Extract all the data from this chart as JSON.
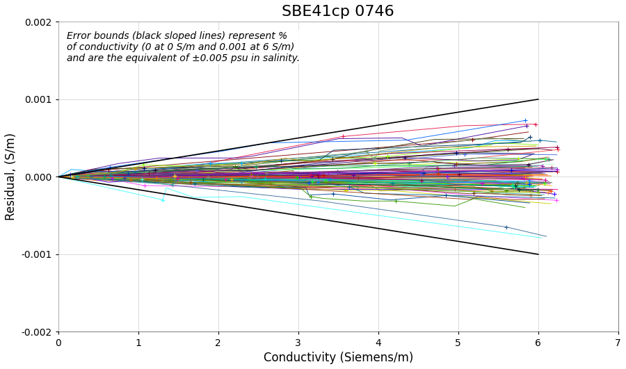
{
  "title": "SBE41cp 0746",
  "xlabel": "Conductivity (Siemens/m)",
  "ylabel": "Residual, (S/m)",
  "xlim": [
    0,
    7
  ],
  "ylim": [
    -0.002,
    0.002
  ],
  "xticks": [
    0,
    1,
    2,
    3,
    4,
    5,
    6,
    7
  ],
  "yticks": [
    -0.002,
    -0.001,
    0.0,
    0.001,
    0.002
  ],
  "error_bound_x": [
    0,
    6
  ],
  "error_bound_y_upper": [
    0,
    0.001
  ],
  "error_bound_y_lower": [
    0,
    -0.001
  ],
  "annotation": "Error bounds (black sloped lines) represent %\nof conductivity (0 at 0 S/m and 0.001 at 6 S/m)\nand are the equivalent of ±0.005 psu in salinity.",
  "n_lines": 90,
  "seed": 42,
  "bg_color": "#ffffff",
  "title_fontsize": 16,
  "label_fontsize": 12,
  "annotation_fontsize": 10
}
